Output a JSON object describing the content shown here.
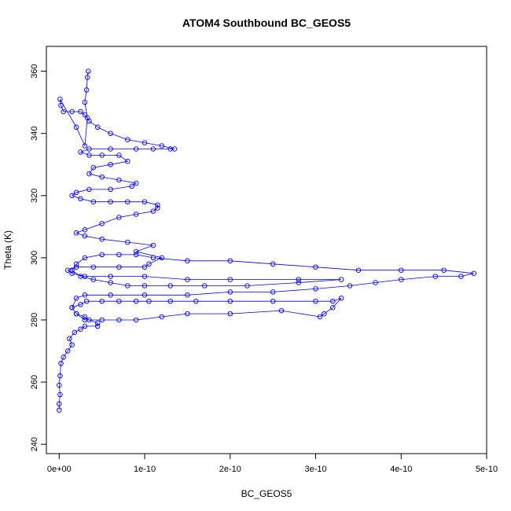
{
  "chart_data": {
    "type": "scatter",
    "title": "ATOM4 Southbound BC_GEOS5",
    "xlabel": "BC_GEOS5",
    "ylabel": "Theta (K)",
    "xlim": [
      -1.5e-11,
      5e-10
    ],
    "ylim": [
      237,
      368
    ],
    "x_ticks": [
      0,
      1e-10,
      2e-10,
      3e-10,
      4e-10,
      5e-10
    ],
    "x_tick_labels": [
      "0e+00",
      "1e-10",
      "2e-10",
      "3e-10",
      "4e-10",
      "5e-10"
    ],
    "y_ticks": [
      240,
      260,
      280,
      300,
      320,
      340,
      360
    ],
    "y_tick_labels": [
      "240",
      "260",
      "280",
      "300",
      "320",
      "340",
      "360"
    ],
    "grid": false,
    "legend": "none",
    "marker": "open-circle",
    "connected": true,
    "color": "#0000ff",
    "series": [
      {
        "values_note_free": true,
        "points": [
          [
            0.0,
            251
          ],
          [
            0.0,
            253
          ],
          [
            1e-12,
            256
          ],
          [
            0.0,
            259
          ],
          [
            1e-12,
            262
          ],
          [
            2e-12,
            266
          ],
          [
            5e-12,
            268
          ],
          [
            1e-11,
            270
          ],
          [
            1.5e-11,
            272
          ],
          [
            1.2e-11,
            274
          ],
          [
            1.8e-11,
            276
          ],
          [
            2.5e-11,
            277
          ],
          [
            3e-11,
            278
          ],
          [
            4.5e-11,
            278
          ],
          [
            4.5e-11,
            279
          ],
          [
            3.5e-11,
            280
          ],
          [
            3e-11,
            281
          ],
          [
            2e-11,
            282
          ],
          [
            1.5e-11,
            284
          ],
          [
            2.5e-11,
            285
          ],
          [
            3.2e-11,
            286
          ],
          [
            5e-11,
            286
          ],
          [
            7e-11,
            286
          ],
          [
            9e-11,
            286
          ],
          [
            1.05e-10,
            286
          ],
          [
            1.3e-10,
            286
          ],
          [
            1.6e-10,
            286
          ],
          [
            2e-10,
            286
          ],
          [
            2.5e-10,
            286
          ],
          [
            3e-10,
            286
          ],
          [
            3.2e-10,
            286
          ],
          [
            3.3e-10,
            287
          ],
          [
            3.2e-10,
            284
          ],
          [
            3.1e-10,
            282
          ],
          [
            3.05e-10,
            281
          ],
          [
            2.6e-10,
            283
          ],
          [
            2e-10,
            282
          ],
          [
            1.5e-10,
            282
          ],
          [
            1.2e-10,
            281
          ],
          [
            9e-11,
            280
          ],
          [
            7e-11,
            280
          ],
          [
            5e-11,
            280
          ],
          [
            3e-11,
            280
          ],
          [
            2e-11,
            282
          ],
          [
            1.5e-11,
            284
          ],
          [
            2e-11,
            287
          ],
          [
            3e-11,
            288
          ],
          [
            6e-11,
            288
          ],
          [
            1e-10,
            288
          ],
          [
            1.5e-10,
            288
          ],
          [
            2e-10,
            289
          ],
          [
            2.5e-10,
            289
          ],
          [
            3e-10,
            290
          ],
          [
            3.4e-10,
            291
          ],
          [
            3.7e-10,
            292
          ],
          [
            4e-10,
            293
          ],
          [
            4.4e-10,
            294
          ],
          [
            4.7e-10,
            294
          ],
          [
            4.85e-10,
            295
          ],
          [
            4.5e-10,
            296
          ],
          [
            4e-10,
            296
          ],
          [
            3.5e-10,
            296
          ],
          [
            3e-10,
            297
          ],
          [
            2.5e-10,
            298
          ],
          [
            2e-10,
            299
          ],
          [
            1.5e-10,
            299
          ],
          [
            1.1e-10,
            300
          ],
          [
            9e-11,
            301
          ],
          [
            7e-11,
            301
          ],
          [
            5e-11,
            301
          ],
          [
            3e-11,
            300
          ],
          [
            2e-11,
            298
          ],
          [
            1.5e-11,
            296
          ],
          [
            2.5e-11,
            294
          ],
          [
            4e-11,
            293
          ],
          [
            6e-11,
            292
          ],
          [
            8e-11,
            291
          ],
          [
            1e-10,
            291
          ],
          [
            1.3e-10,
            291
          ],
          [
            1.7e-10,
            291
          ],
          [
            2.2e-10,
            291
          ],
          [
            2.8e-10,
            292
          ],
          [
            3.3e-10,
            293
          ],
          [
            2.8e-10,
            293
          ],
          [
            2e-10,
            293
          ],
          [
            1.5e-10,
            293
          ],
          [
            1e-10,
            294
          ],
          [
            6e-11,
            294
          ],
          [
            3e-11,
            294
          ],
          [
            1.5e-11,
            295
          ],
          [
            1e-11,
            296
          ],
          [
            2e-11,
            297
          ],
          [
            4e-11,
            297
          ],
          [
            7e-11,
            297
          ],
          [
            1e-10,
            297
          ],
          [
            1.05e-10,
            298
          ],
          [
            1.2e-10,
            300
          ],
          [
            9e-11,
            302
          ],
          [
            1.1e-10,
            304
          ],
          [
            8e-11,
            305
          ],
          [
            5e-11,
            306
          ],
          [
            3e-11,
            307
          ],
          [
            2e-11,
            308
          ],
          [
            3e-11,
            309
          ],
          [
            5e-11,
            311
          ],
          [
            7e-11,
            313
          ],
          [
            9e-11,
            314
          ],
          [
            1.1e-10,
            315
          ],
          [
            1.15e-10,
            316
          ],
          [
            1.15e-10,
            317
          ],
          [
            1e-10,
            318
          ],
          [
            8e-11,
            318
          ],
          [
            6e-11,
            318
          ],
          [
            4e-11,
            318
          ],
          [
            2.5e-11,
            319
          ],
          [
            1.5e-11,
            320
          ],
          [
            2e-11,
            321
          ],
          [
            3.5e-11,
            322
          ],
          [
            6e-11,
            322
          ],
          [
            8.5e-11,
            323
          ],
          [
            9e-11,
            324
          ],
          [
            7e-11,
            325
          ],
          [
            5e-11,
            326
          ],
          [
            3.5e-11,
            327
          ],
          [
            4e-11,
            329
          ],
          [
            6e-11,
            330
          ],
          [
            8e-11,
            331
          ],
          [
            7e-11,
            333
          ],
          [
            5e-11,
            333
          ],
          [
            3.5e-11,
            333
          ],
          [
            2.5e-11,
            334
          ],
          [
            3.5e-11,
            335
          ],
          [
            6e-11,
            335
          ],
          [
            9e-11,
            335
          ],
          [
            1.1e-10,
            335
          ],
          [
            1.3e-10,
            335
          ],
          [
            1.35e-10,
            335
          ],
          [
            1.2e-10,
            336
          ],
          [
            1e-10,
            337
          ],
          [
            8e-11,
            338
          ],
          [
            6e-11,
            340
          ],
          [
            4.5e-11,
            342
          ],
          [
            3.5e-11,
            344
          ],
          [
            3e-11,
            346
          ],
          [
            2.5e-11,
            347
          ],
          [
            1.5e-11,
            347
          ],
          [
            5e-12,
            347
          ],
          [
            2e-12,
            349
          ],
          [
            1e-12,
            351
          ],
          [
            2e-11,
            342
          ],
          [
            3e-11,
            336
          ],
          [
            3.3e-11,
            345
          ],
          [
            3e-11,
            350
          ],
          [
            3.2e-11,
            354
          ],
          [
            3.3e-11,
            358
          ],
          [
            3.4e-11,
            360
          ]
        ]
      }
    ]
  }
}
